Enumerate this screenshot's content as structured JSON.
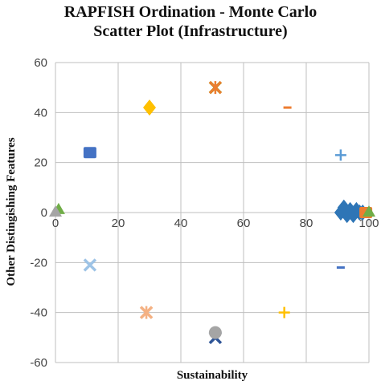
{
  "chart_data": {
    "type": "scatter",
    "title_lines": [
      "RAPFISH Ordination - Monte Carlo",
      "Scatter Plot (Infrastructure)"
    ],
    "xlabel": "Sustainability",
    "ylabel": "Other Distingishing Features",
    "xlim": [
      0,
      100
    ],
    "ylim": [
      -60,
      60
    ],
    "x_ticks": [
      0,
      20,
      40,
      60,
      80,
      100
    ],
    "y_ticks": [
      -60,
      -40,
      -20,
      0,
      20,
      40,
      60
    ],
    "x_tick_labels": [
      "0",
      "20",
      "40",
      "60",
      "80",
      "100"
    ],
    "y_tick_labels": [
      "-60",
      "-40",
      "-20",
      "0",
      "20",
      "40",
      "60"
    ],
    "grid": true,
    "points": [
      {
        "x": 51,
        "y": 50,
        "marker": "x",
        "color": "#b8860b"
      },
      {
        "x": 51,
        "y": 50,
        "marker": "star",
        "color": "#ed7d31"
      },
      {
        "x": 30,
        "y": 42,
        "marker": "diamond",
        "color": "#ffc000"
      },
      {
        "x": 74,
        "y": 42,
        "marker": "dash",
        "color": "#ed7d31"
      },
      {
        "x": 11,
        "y": 24,
        "marker": "square",
        "color": "#4472c4"
      },
      {
        "x": 91,
        "y": 23,
        "marker": "plus",
        "color": "#5b9bd5"
      },
      {
        "x": 1,
        "y": 1,
        "marker": "triangle",
        "color": "#70ad47"
      },
      {
        "x": 0,
        "y": 0,
        "marker": "triangle",
        "color": "#a5a5a5"
      },
      {
        "x": 91,
        "y": 0,
        "marker": "diamond",
        "color": "#2e75b6"
      },
      {
        "x": 92,
        "y": 2,
        "marker": "diamond",
        "color": "#2e75b6"
      },
      {
        "x": 93,
        "y": -1,
        "marker": "diamond",
        "color": "#2e75b6"
      },
      {
        "x": 94,
        "y": 1,
        "marker": "diamond",
        "color": "#2e75b6"
      },
      {
        "x": 95,
        "y": -1,
        "marker": "diamond",
        "color": "#2e75b6"
      },
      {
        "x": 96,
        "y": 1,
        "marker": "diamond",
        "color": "#2e75b6"
      },
      {
        "x": 97,
        "y": 0,
        "marker": "diamond",
        "color": "#2e75b6"
      },
      {
        "x": 98,
        "y": 0,
        "marker": "diamond",
        "color": "#2e75b6"
      },
      {
        "x": 99,
        "y": 0,
        "marker": "square",
        "color": "#ed7d31"
      },
      {
        "x": 100,
        "y": 0,
        "marker": "triangle",
        "color": "#70ad47"
      },
      {
        "x": 11,
        "y": -21,
        "marker": "x",
        "color": "#9dc3e6"
      },
      {
        "x": 91,
        "y": -22,
        "marker": "dash",
        "color": "#4472c4"
      },
      {
        "x": 29,
        "y": -40,
        "marker": "x",
        "color": "#f4b183"
      },
      {
        "x": 29,
        "y": -40,
        "marker": "star",
        "color": "#f4b183"
      },
      {
        "x": 73,
        "y": -40,
        "marker": "plus",
        "color": "#ffc000"
      },
      {
        "x": 51,
        "y": -50,
        "marker": "x",
        "color": "#2f5597"
      },
      {
        "x": 51,
        "y": -48,
        "marker": "circle",
        "color": "#a5a5a5"
      }
    ]
  }
}
